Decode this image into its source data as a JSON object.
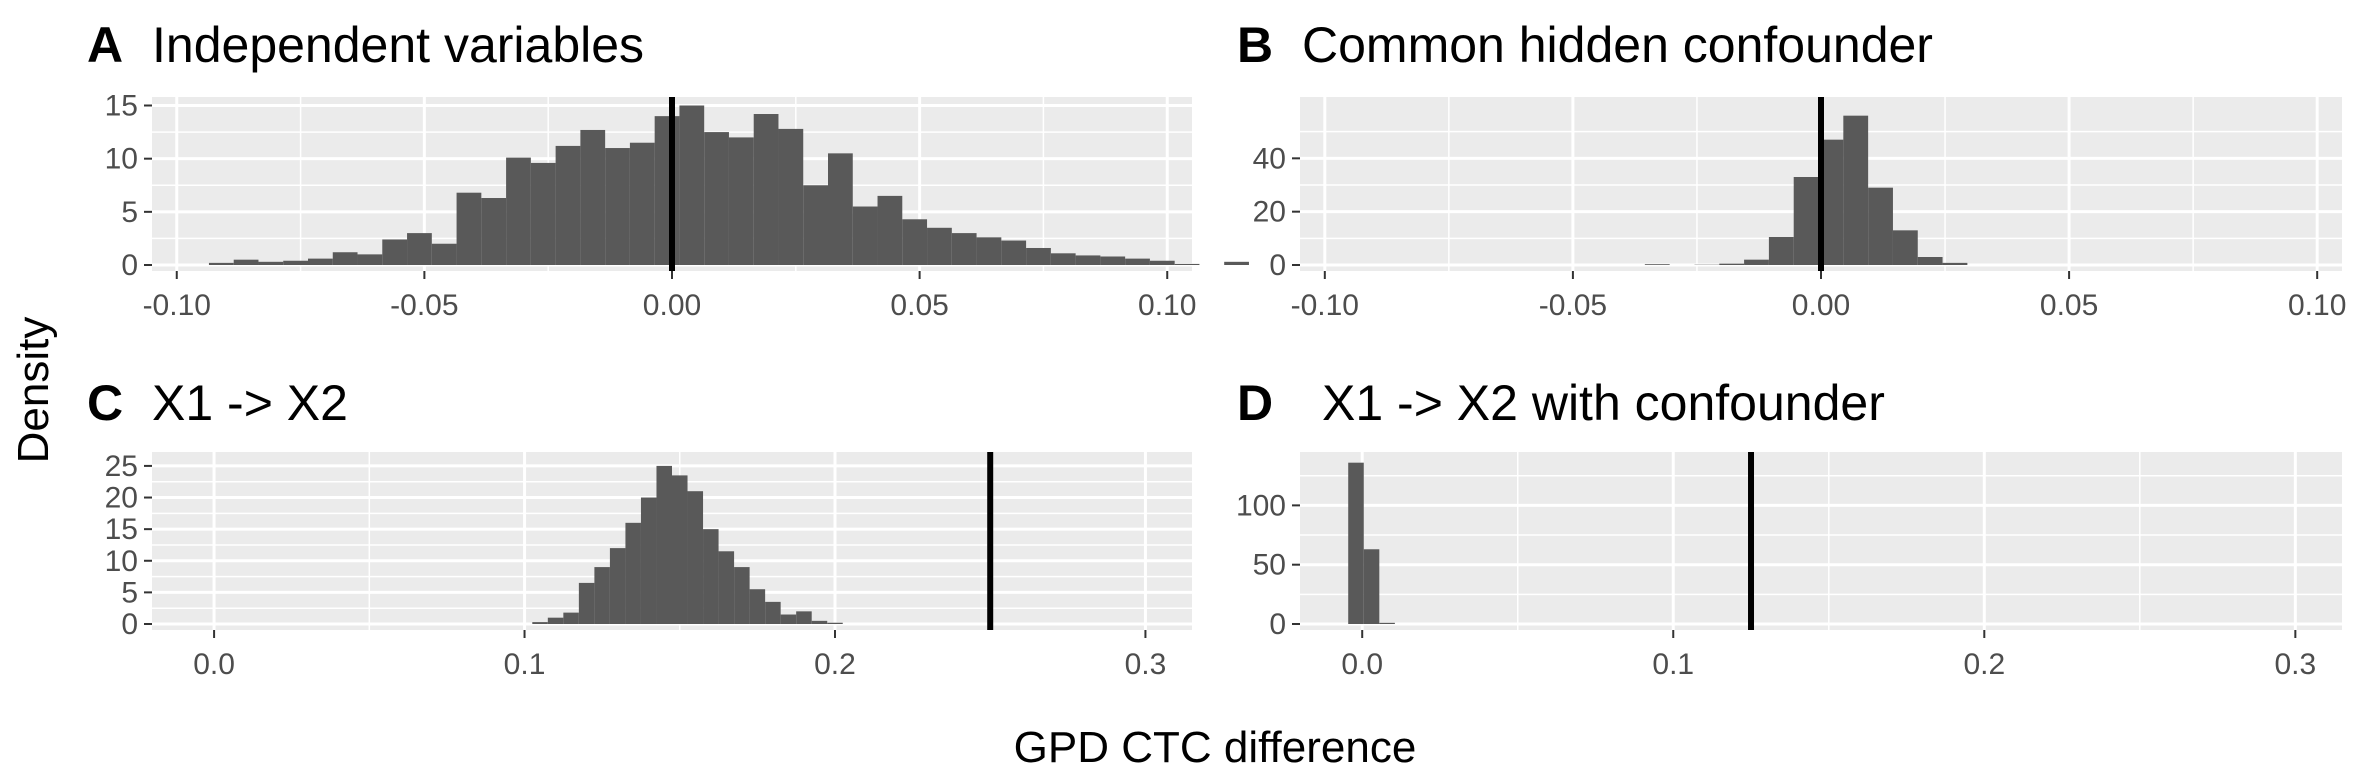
{
  "figure": {
    "ylabel": "Density",
    "xlabel": "GPD CTC difference"
  },
  "colors": {
    "panel_bg": "#ebebeb",
    "grid": "#ffffff",
    "bar": "#595959",
    "vline": "#000000",
    "tick_text": "#4d4d4d",
    "tick_mark": "#333333"
  },
  "chart_data": [
    {
      "id": "A",
      "type": "bar",
      "letter": "A",
      "title": "Independent variables",
      "xlim": [
        -0.105,
        0.105
      ],
      "ylim": [
        0,
        15.8
      ],
      "xticks": [
        -0.1,
        -0.05,
        0.0,
        0.05,
        0.1
      ],
      "xtick_labels": [
        "-0.10",
        "-0.05",
        "0.00",
        "0.05",
        "0.10"
      ],
      "yticks": [
        0,
        5,
        10,
        15
      ],
      "ytick_labels": [
        "0",
        "5",
        "10",
        "15"
      ],
      "bin_start": -0.0935,
      "bin_width": 0.005,
      "values": [
        0.2,
        0.5,
        0.3,
        0.4,
        0.6,
        1.2,
        1.0,
        2.4,
        3.0,
        2.0,
        6.8,
        6.3,
        10.1,
        9.6,
        11.2,
        12.7,
        11.0,
        11.5,
        14.0,
        15.0,
        12.5,
        12.0,
        14.2,
        12.8,
        7.5,
        10.5,
        5.5,
        6.5,
        4.3,
        3.5,
        3.0,
        2.6,
        2.3,
        1.6,
        1.1,
        0.9,
        0.8,
        0.6,
        0.4,
        0.1,
        0.0,
        0.3
      ],
      "vline": 0.0
    },
    {
      "id": "B",
      "type": "bar",
      "letter": "B",
      "title": "Common hidden confounder",
      "xlim": [
        -0.105,
        0.105
      ],
      "ylim": [
        0,
        63
      ],
      "xticks": [
        -0.1,
        -0.05,
        0.0,
        0.05,
        0.1
      ],
      "xtick_labels": [
        "-0.10",
        "-0.05",
        "0.00",
        "0.05",
        "0.10"
      ],
      "yticks": [
        0,
        20,
        40
      ],
      "ytick_labels": [
        "0",
        "20",
        "40"
      ],
      "bin_start": -0.0355,
      "bin_width": 0.005,
      "values": [
        0.3,
        0.0,
        0.1,
        0.5,
        2.0,
        10.5,
        33.0,
        47.0,
        56.0,
        29.0,
        13.0,
        3.0,
        0.8
      ],
      "vline": 0.0
    },
    {
      "id": "C",
      "type": "bar",
      "letter": "C",
      "title": "X1 -> X2",
      "xlim": [
        -0.02,
        0.315
      ],
      "ylim": [
        0,
        27.2
      ],
      "xticks": [
        0.0,
        0.1,
        0.2,
        0.3
      ],
      "xtick_labels": [
        "0.0",
        "0.1",
        "0.2",
        "0.3"
      ],
      "yticks": [
        0,
        5,
        10,
        15,
        20,
        25
      ],
      "ytick_labels": [
        "0",
        "5",
        "10",
        "15",
        "20",
        "25"
      ],
      "bin_start": 0.1025,
      "bin_width": 0.005,
      "values": [
        0.3,
        1.0,
        1.8,
        6.5,
        9.0,
        12.0,
        16.0,
        20.0,
        25.0,
        23.5,
        21.0,
        15.0,
        11.5,
        9.0,
        5.5,
        3.5,
        1.5,
        2.0,
        0.5,
        0.2
      ],
      "vline": 0.25
    },
    {
      "id": "D",
      "type": "bar",
      "letter": "D",
      "title": "X1 -> X2 with confounder",
      "xlim": [
        -0.02,
        0.315
      ],
      "ylim": [
        0,
        145
      ],
      "xticks": [
        0.0,
        0.1,
        0.2,
        0.3
      ],
      "xtick_labels": [
        "0.0",
        "0.1",
        "0.2",
        "0.3"
      ],
      "yticks": [
        0,
        50,
        100
      ],
      "ytick_labels": [
        "0",
        "50",
        "100"
      ],
      "bin_start": -0.0045,
      "bin_width": 0.005,
      "values": [
        136.0,
        63.0,
        1.0
      ],
      "vline": 0.125
    }
  ]
}
